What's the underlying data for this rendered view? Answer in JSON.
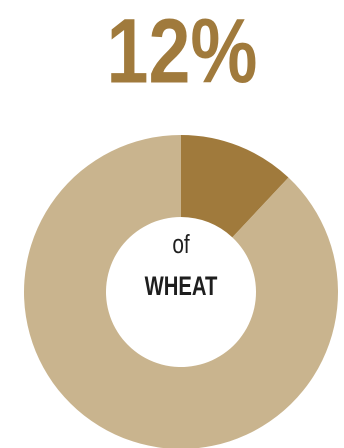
{
  "chart_data": {
    "type": "donut",
    "values": [
      12,
      88
    ],
    "value_labels": [
      "12%",
      null
    ],
    "colors": [
      "#a07a3c",
      "#c9b48e"
    ],
    "center_text": [
      "of",
      "WHEAT"
    ]
  }
}
